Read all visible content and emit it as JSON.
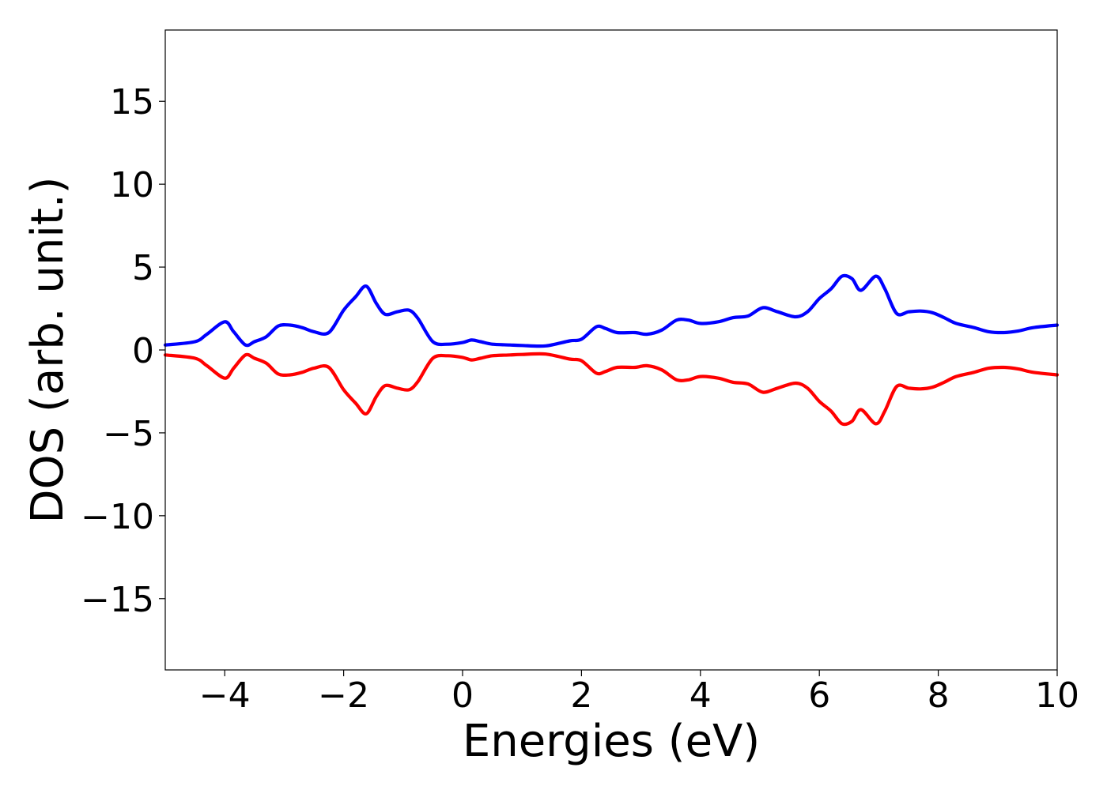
{
  "chart_data": {
    "type": "line",
    "title": "",
    "xlabel": "Energies (eV)",
    "ylabel": "DOS (arb. unit.)",
    "xlim": [
      -5,
      10
    ],
    "ylim": [
      -19.3,
      19.3
    ],
    "xticks": [
      -4,
      -2,
      0,
      2,
      4,
      6,
      8,
      10
    ],
    "xtick_labels": [
      "−4",
      "−2",
      "0",
      "2",
      "4",
      "6",
      "8",
      "10"
    ],
    "yticks": [
      15,
      10,
      5,
      0,
      -5,
      -10,
      -15
    ],
    "ytick_labels": [
      "15",
      "10",
      "5",
      "0",
      "−5",
      "−10",
      "−15"
    ],
    "grid": false,
    "legend": "none",
    "x": [
      -5.0,
      -4.5,
      -4.3,
      -4.0,
      -3.85,
      -3.65,
      -3.5,
      -3.3,
      -3.1,
      -2.9,
      -2.7,
      -2.5,
      -2.25,
      -2.0,
      -1.8,
      -1.62,
      -1.45,
      -1.3,
      -1.1,
      -0.9,
      -0.75,
      -0.5,
      -0.25,
      0.0,
      0.15,
      0.3,
      0.5,
      0.8,
      1.0,
      1.4,
      1.8,
      2.0,
      2.25,
      2.4,
      2.6,
      2.9,
      3.1,
      3.35,
      3.6,
      3.8,
      4.0,
      4.3,
      4.55,
      4.8,
      5.05,
      5.3,
      5.6,
      5.8,
      6.0,
      6.2,
      6.38,
      6.55,
      6.7,
      6.95,
      7.1,
      7.3,
      7.5,
      7.7,
      7.9,
      8.1,
      8.3,
      8.6,
      8.85,
      9.1,
      9.35,
      9.6,
      10.0
    ],
    "series": [
      {
        "color": "#0000ff",
        "values": [
          0.3,
          0.5,
          0.95,
          1.7,
          1.1,
          0.3,
          0.5,
          0.8,
          1.45,
          1.5,
          1.35,
          1.1,
          1.05,
          2.4,
          3.2,
          3.85,
          2.8,
          2.15,
          2.3,
          2.4,
          1.9,
          0.5,
          0.35,
          0.45,
          0.6,
          0.5,
          0.35,
          0.3,
          0.27,
          0.25,
          0.55,
          0.65,
          1.4,
          1.3,
          1.05,
          1.05,
          0.95,
          1.2,
          1.8,
          1.8,
          1.6,
          1.7,
          1.95,
          2.05,
          2.55,
          2.3,
          2.0,
          2.3,
          3.1,
          3.7,
          4.45,
          4.3,
          3.6,
          4.45,
          3.7,
          2.2,
          2.3,
          2.35,
          2.25,
          1.95,
          1.6,
          1.35,
          1.1,
          1.05,
          1.15,
          1.35,
          1.5
        ]
      },
      {
        "color": "#ff0000",
        "values": [
          -0.3,
          -0.5,
          -0.95,
          -1.7,
          -1.1,
          -0.3,
          -0.5,
          -0.8,
          -1.45,
          -1.5,
          -1.35,
          -1.1,
          -1.05,
          -2.4,
          -3.2,
          -3.85,
          -2.8,
          -2.15,
          -2.3,
          -2.4,
          -1.9,
          -0.5,
          -0.35,
          -0.45,
          -0.6,
          -0.5,
          -0.35,
          -0.3,
          -0.27,
          -0.25,
          -0.55,
          -0.65,
          -1.4,
          -1.3,
          -1.05,
          -1.05,
          -0.95,
          -1.2,
          -1.8,
          -1.8,
          -1.6,
          -1.7,
          -1.95,
          -2.05,
          -2.55,
          -2.3,
          -2.0,
          -2.3,
          -3.1,
          -3.7,
          -4.45,
          -4.3,
          -3.6,
          -4.45,
          -3.7,
          -2.2,
          -2.3,
          -2.35,
          -2.25,
          -1.95,
          -1.6,
          -1.35,
          -1.1,
          -1.05,
          -1.15,
          -1.35,
          -1.5
        ]
      }
    ]
  }
}
